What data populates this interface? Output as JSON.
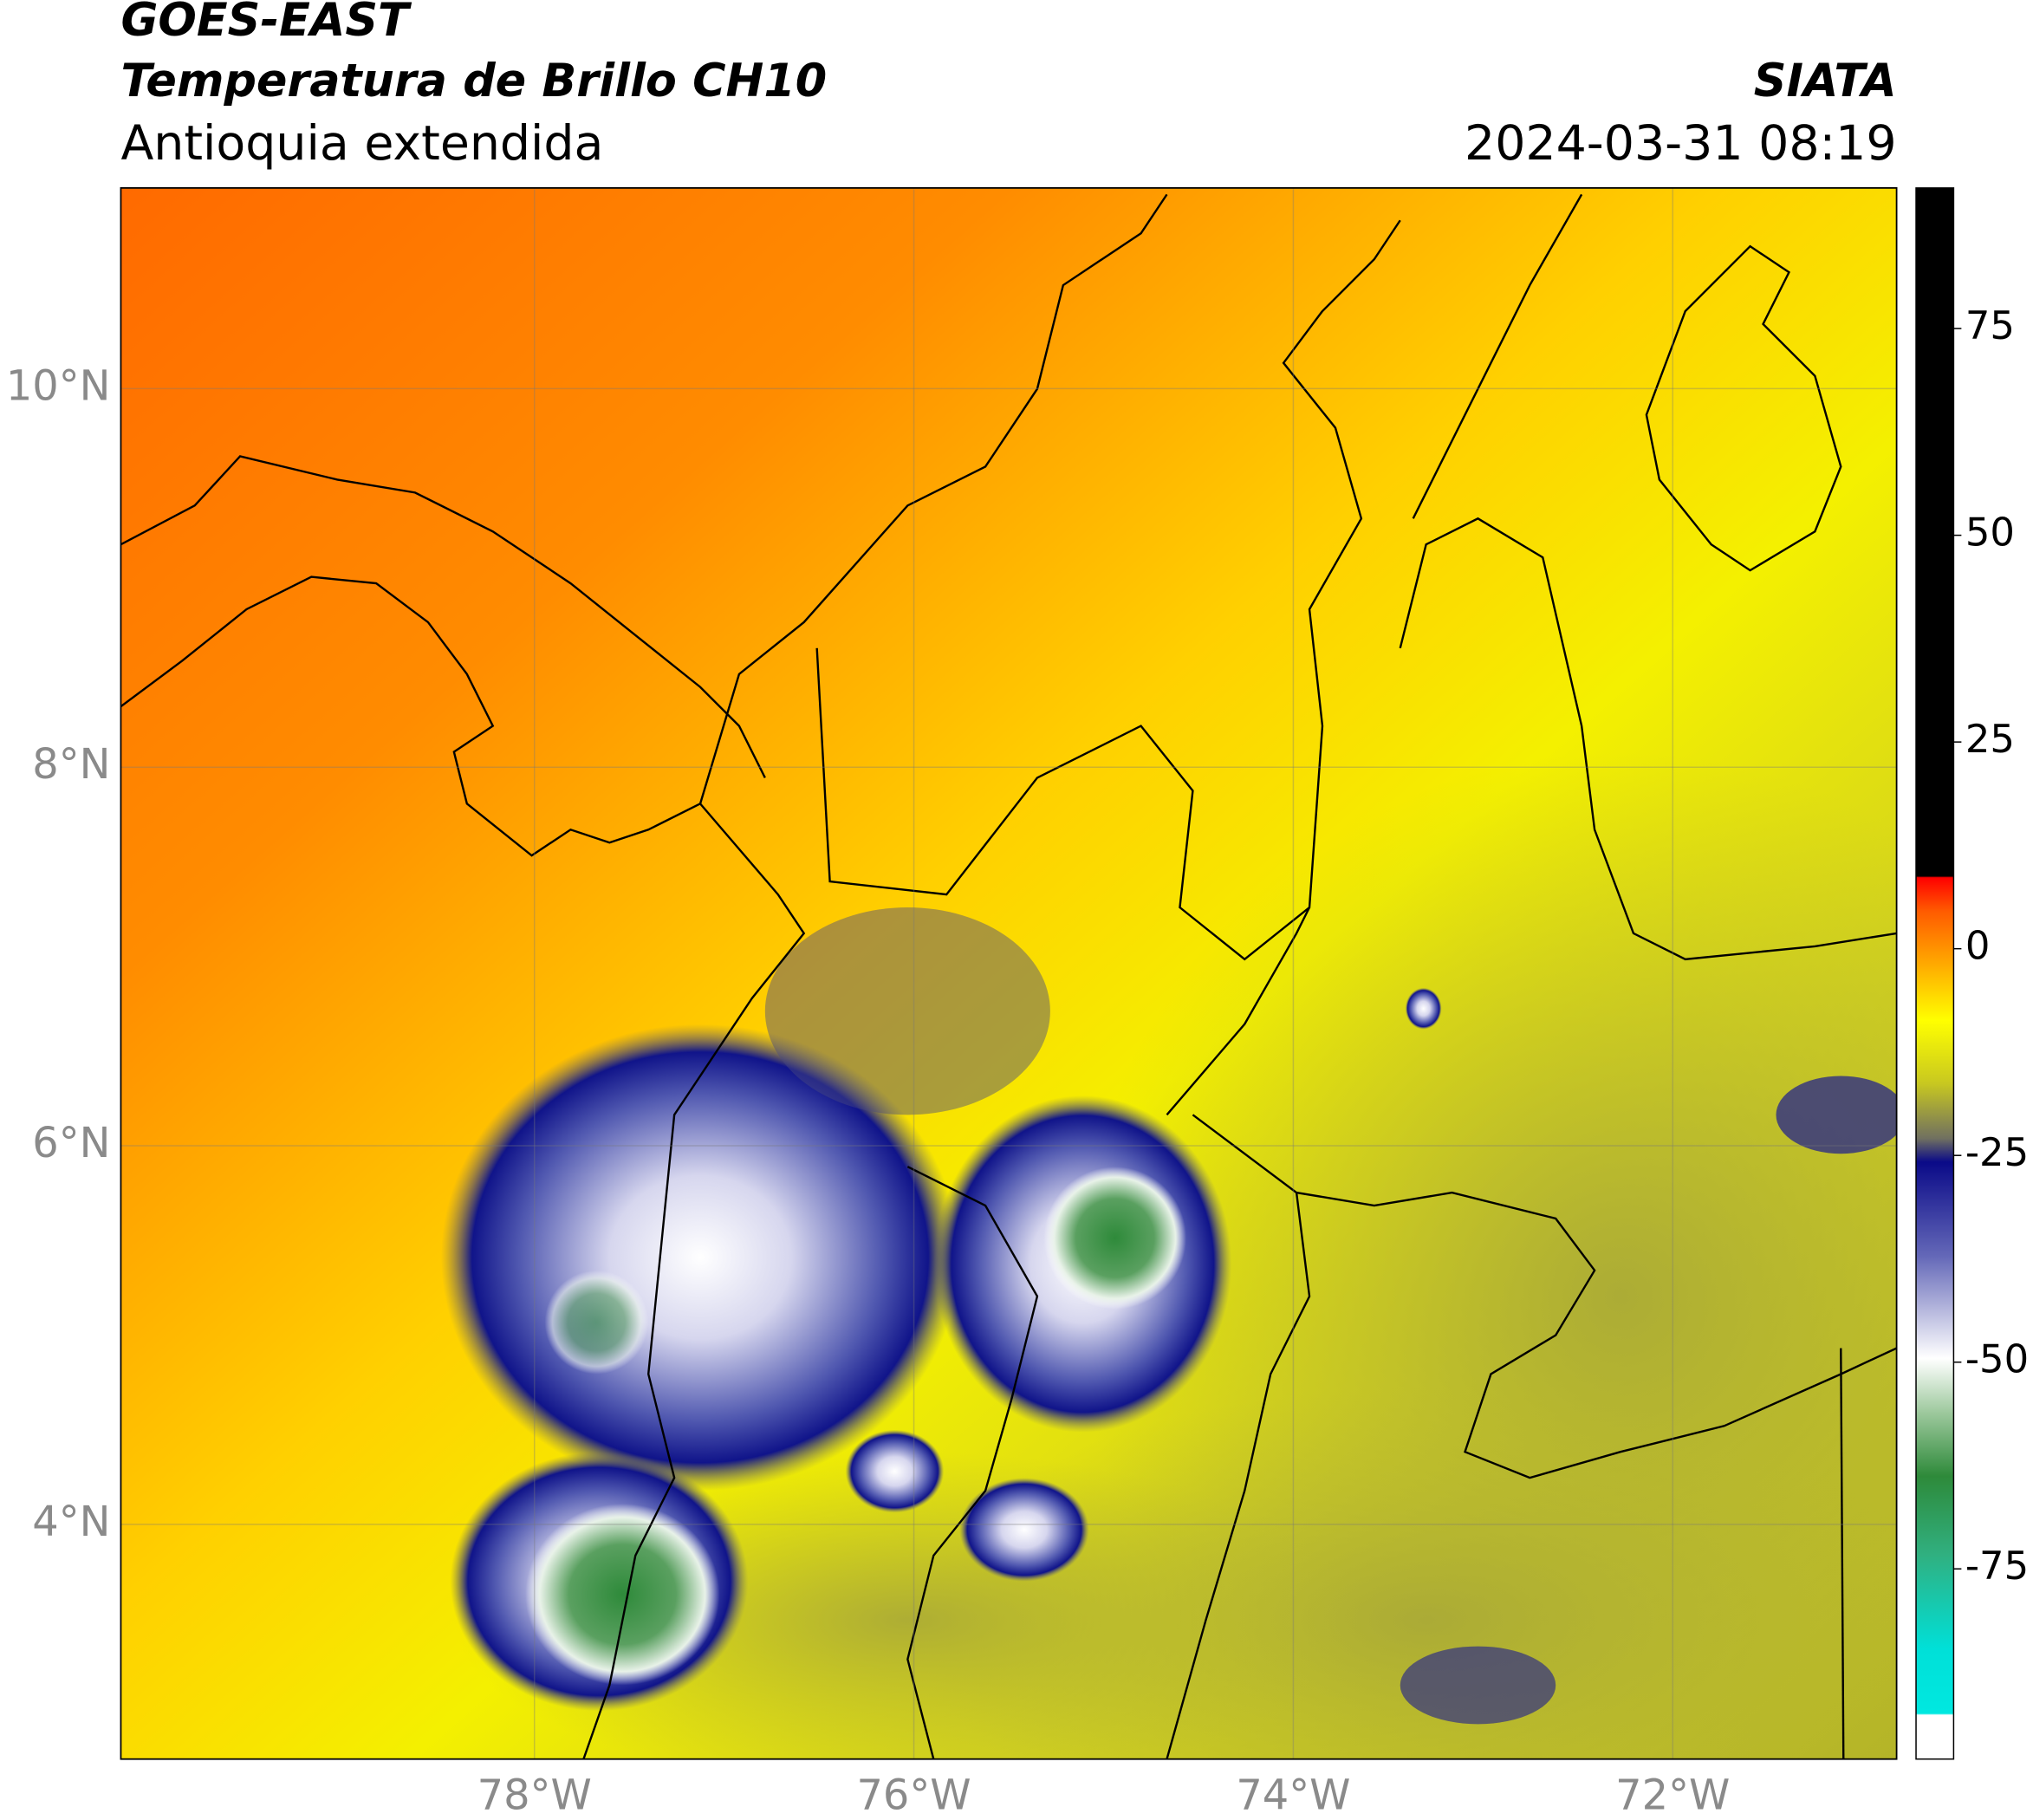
{
  "header": {
    "satellite": "GOES-EAST",
    "product": "Temperatura de Brillo CH10",
    "region": "Antioquia extendida",
    "source": "SIATA",
    "datetime": "2024-03-31 08:19"
  },
  "map": {
    "xlim": [
      -80.18,
      -70.82
    ],
    "ylim": [
      2.76,
      11.06
    ],
    "xticks": [
      {
        "value": -78,
        "label": "78°W"
      },
      {
        "value": -76,
        "label": "76°W"
      },
      {
        "value": -74,
        "label": "74°W"
      },
      {
        "value": -72,
        "label": "72°W"
      }
    ],
    "yticks": [
      {
        "value": 10,
        "label": "10°N"
      },
      {
        "value": 8,
        "label": "8°N"
      },
      {
        "value": 6,
        "label": "6°N"
      },
      {
        "value": 4,
        "label": "4°N"
      }
    ],
    "grid": true
  },
  "colorbar": {
    "lim": [
      -98,
      92
    ],
    "ticks": [
      75,
      50,
      25,
      0,
      -25,
      -50,
      -75
    ]
  }
}
